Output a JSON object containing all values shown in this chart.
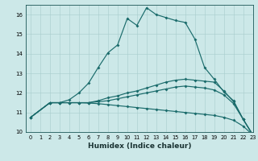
{
  "xlabel": "Humidex (Indice chaleur)",
  "bg_color": "#cce8e8",
  "line_color": "#1a6b6b",
  "xlim": [
    -0.5,
    23
  ],
  "ylim": [
    10,
    16.5
  ],
  "yticks": [
    10,
    11,
    12,
    13,
    14,
    15,
    16
  ],
  "xticks": [
    0,
    1,
    2,
    3,
    4,
    5,
    6,
    7,
    8,
    9,
    10,
    11,
    12,
    13,
    14,
    15,
    16,
    17,
    18,
    19,
    20,
    21,
    22,
    23
  ],
  "line1_x": [
    0,
    2,
    3,
    4,
    5,
    6,
    7,
    8,
    9,
    10,
    11,
    12,
    13,
    14,
    15,
    16,
    17,
    18,
    19,
    20,
    21,
    22,
    23
  ],
  "line1_y": [
    10.75,
    11.5,
    11.5,
    11.65,
    12.0,
    12.5,
    13.3,
    14.05,
    14.45,
    15.8,
    15.45,
    16.35,
    16.0,
    15.85,
    15.7,
    15.6,
    14.75,
    13.3,
    12.7,
    12.05,
    11.6,
    10.65,
    9.85
  ],
  "line2_x": [
    0,
    2,
    3,
    4,
    5,
    6,
    7,
    8,
    9,
    10,
    11,
    12,
    13,
    14,
    15,
    16,
    17,
    18,
    19,
    20,
    21,
    22,
    23
  ],
  "line2_y": [
    10.75,
    11.5,
    11.5,
    11.5,
    11.5,
    11.5,
    11.6,
    11.75,
    11.85,
    12.0,
    12.1,
    12.25,
    12.4,
    12.55,
    12.65,
    12.7,
    12.65,
    12.6,
    12.55,
    12.1,
    11.55,
    10.65,
    9.85
  ],
  "line3_x": [
    0,
    2,
    3,
    4,
    5,
    6,
    7,
    8,
    9,
    10,
    11,
    12,
    13,
    14,
    15,
    16,
    17,
    18,
    19,
    20,
    21,
    22,
    23
  ],
  "line3_y": [
    10.75,
    11.5,
    11.5,
    11.5,
    11.5,
    11.5,
    11.55,
    11.6,
    11.7,
    11.8,
    11.9,
    12.0,
    12.1,
    12.2,
    12.3,
    12.35,
    12.3,
    12.25,
    12.15,
    11.9,
    11.45,
    10.65,
    9.85
  ],
  "line4_x": [
    0,
    2,
    3,
    4,
    5,
    6,
    7,
    8,
    9,
    10,
    11,
    12,
    13,
    14,
    15,
    16,
    17,
    18,
    19,
    20,
    21,
    22,
    23
  ],
  "line4_y": [
    10.75,
    11.5,
    11.5,
    11.5,
    11.5,
    11.48,
    11.45,
    11.4,
    11.35,
    11.3,
    11.25,
    11.2,
    11.15,
    11.1,
    11.05,
    11.0,
    10.95,
    10.9,
    10.85,
    10.75,
    10.6,
    10.3,
    9.85
  ]
}
